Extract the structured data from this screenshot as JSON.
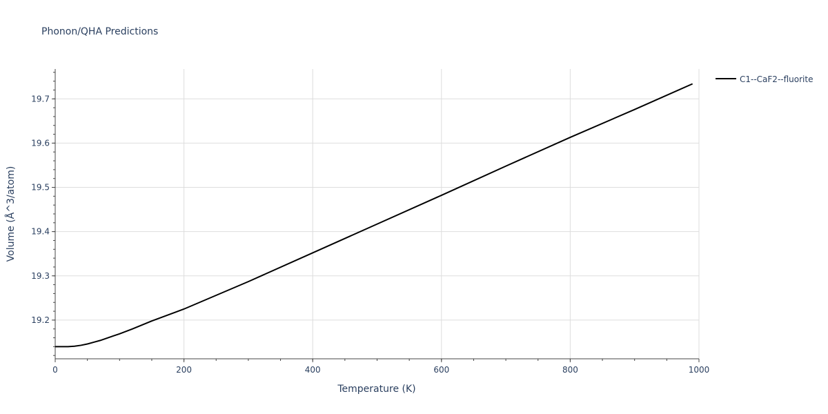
{
  "chart_data": {
    "type": "line",
    "title": "Phonon/QHA Predictions",
    "xlabel": "Temperature (K)",
    "ylabel": "Volume (Å^3/atom)",
    "xlim": [
      0,
      1000
    ],
    "ylim": [
      19.1125,
      19.7675
    ],
    "x_ticks": [
      0,
      200,
      400,
      600,
      800,
      1000
    ],
    "x_tick_labels": [
      "0",
      "200",
      "400",
      "600",
      "800",
      "1000"
    ],
    "y_ticks": [
      19.2,
      19.3,
      19.4,
      19.5,
      19.6,
      19.7
    ],
    "y_tick_labels": [
      "19.2",
      "19.3",
      "19.4",
      "19.5",
      "19.6",
      "19.7"
    ],
    "grid": true,
    "legend_position": "top-right",
    "series": [
      {
        "name": "C1--CaF2--fluorite",
        "color": "#000000",
        "x": [
          0,
          10,
          20,
          30,
          40,
          50,
          60,
          70,
          80,
          90,
          100,
          120,
          150,
          200,
          300,
          400,
          500,
          600,
          700,
          800,
          900,
          990
        ],
        "y": [
          19.14,
          19.14,
          19.14,
          19.141,
          19.143,
          19.146,
          19.15,
          19.154,
          19.159,
          19.164,
          19.169,
          19.18,
          19.198,
          19.225,
          19.287,
          19.352,
          19.417,
          19.482,
          19.548,
          19.613,
          19.676,
          19.734
        ]
      }
    ]
  }
}
